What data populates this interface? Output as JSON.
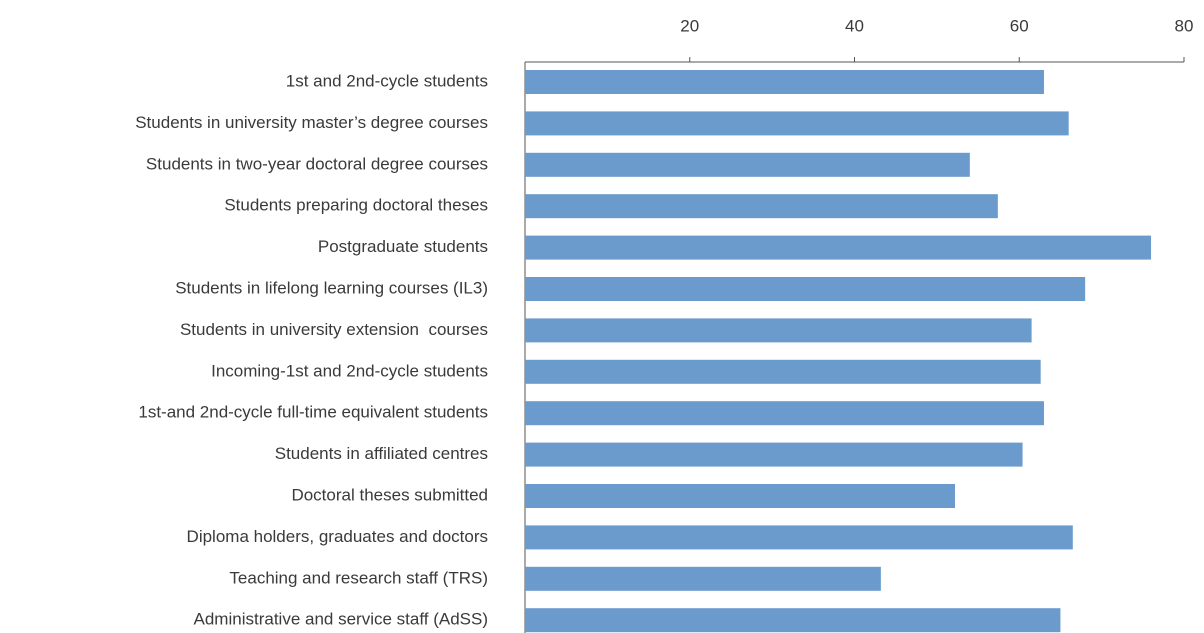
{
  "chart_data": {
    "type": "bar",
    "orientation": "horizontal",
    "categories": [
      "1st and 2nd-cycle students",
      "Students in university master’s degree courses",
      "Students in two-year doctoral degree courses",
      "Students preparing doctoral theses",
      "Postgraduate students",
      "Students in lifelong learning courses (IL3)",
      "Students in university extension  courses",
      "Incoming-1st and 2nd-cycle students",
      "1st-and 2nd-cycle full-time equivalent students",
      "Students in affiliated centres",
      "Doctoral theses submitted",
      "Diploma holders, graduates and doctors",
      "Teaching and research staff (TRS)",
      "Administrative and service staff (AdSS)"
    ],
    "values": [
      63,
      66,
      54,
      57.4,
      76,
      68,
      61.5,
      62.6,
      63,
      60.4,
      52.2,
      66.5,
      43.2,
      65
    ],
    "color": "#6a9bcc",
    "xlim": [
      0,
      80
    ],
    "xticks": [
      20,
      40,
      60,
      80
    ]
  }
}
